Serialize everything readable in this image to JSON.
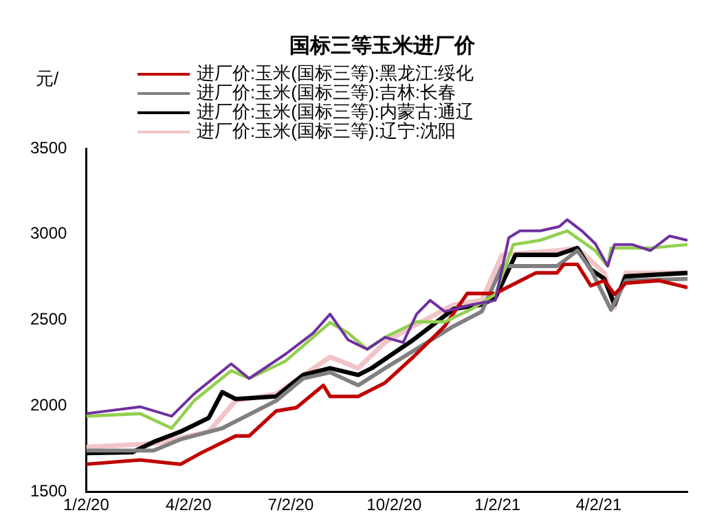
{
  "chart_data": {
    "type": "line",
    "title": "国标三等玉米进厂价",
    "ylabel": "元/",
    "legend": "top",
    "marker": "none",
    "line_style": "solid",
    "grid": false,
    "xlim": [
      "2020-01-02",
      "2021-06-20"
    ],
    "xticks": [
      {
        "value": "2020-01-02",
        "label": "1/2/20"
      },
      {
        "value": "2020-04-02",
        "label": "4/2/20"
      },
      {
        "value": "2020-07-02",
        "label": "7/2/20"
      },
      {
        "value": "2020-10-02",
        "label": "10/2/20"
      },
      {
        "value": "2021-01-02",
        "label": "1/2/21"
      },
      {
        "value": "2021-04-02",
        "label": "4/2/21"
      }
    ],
    "ylim": [
      1500,
      3500
    ],
    "yticks": [
      1500,
      2000,
      2500,
      3000,
      3500
    ],
    "series": [
      {
        "color": "#7030a0",
        "x": [
          "2020-01-02",
          "2020-02-19",
          "2020-03-18",
          "2020-04-07",
          "2020-05-10",
          "2020-05-26",
          "2020-06-27",
          "2020-07-22",
          "2020-08-06",
          "2020-08-22",
          "2020-09-08",
          "2020-09-24",
          "2020-10-10",
          "2020-10-22",
          "2020-11-03",
          "2020-11-16",
          "2020-12-10",
          "2020-12-31",
          "2021-01-12",
          "2021-01-22",
          "2021-02-09",
          "2021-02-26",
          "2021-03-05",
          "2021-03-18",
          "2021-03-30",
          "2021-04-10",
          "2021-04-16",
          "2021-05-02",
          "2021-05-18",
          "2021-06-04",
          "2021-06-20"
        ],
        "values": [
          1955,
          1995,
          1940,
          2070,
          2245,
          2160,
          2300,
          2425,
          2535,
          2385,
          2330,
          2400,
          2370,
          2535,
          2615,
          2550,
          2590,
          2615,
          2980,
          3020,
          3020,
          3045,
          3085,
          3020,
          2945,
          2815,
          2940,
          2940,
          2905,
          2990,
          2965
        ]
      },
      {
        "color": "#92d050",
        "x": [
          "2020-01-02",
          "2020-02-19",
          "2020-03-18",
          "2020-04-07",
          "2020-05-10",
          "2020-05-26",
          "2020-06-27",
          "2020-08-06",
          "2020-08-22",
          "2020-09-08",
          "2020-09-24",
          "2020-10-22",
          "2020-11-16",
          "2020-12-10",
          "2020-12-31",
          "2021-01-16",
          "2021-02-09",
          "2021-03-05",
          "2021-03-30",
          "2021-04-10",
          "2021-04-13",
          "2021-05-18",
          "2021-06-20"
        ],
        "values": [
          1940,
          1955,
          1870,
          2030,
          2205,
          2160,
          2260,
          2485,
          2425,
          2330,
          2400,
          2490,
          2490,
          2565,
          2650,
          2940,
          2965,
          3020,
          2905,
          2815,
          2920,
          2920,
          2940
        ]
      },
      {
        "name": "进厂价:玉米(国标三等):黑龙江:绥化",
        "color": "#c00000",
        "x": [
          "2020-01-02",
          "2020-02-19",
          "2020-03-26",
          "2020-04-13",
          "2020-05-14",
          "2020-05-26",
          "2020-06-19",
          "2020-07-07",
          "2020-07-31",
          "2020-08-06",
          "2020-08-31",
          "2020-09-24",
          "2020-10-19",
          "2020-11-16",
          "2020-12-06",
          "2020-12-31",
          "2021-02-05",
          "2021-02-24",
          "2021-03-02",
          "2021-03-14",
          "2021-03-26",
          "2021-04-07",
          "2021-04-16",
          "2021-04-26",
          "2021-05-26",
          "2021-06-20"
        ],
        "values": [
          1660,
          1685,
          1660,
          1725,
          1825,
          1825,
          1970,
          1990,
          2120,
          2055,
          2055,
          2135,
          2285,
          2465,
          2655,
          2655,
          2775,
          2775,
          2825,
          2825,
          2700,
          2730,
          2650,
          2715,
          2730,
          2690
        ]
      },
      {
        "name": "进厂价:玉米(国标三等):吉林:长春",
        "color": "#808080",
        "x": [
          "2020-01-02",
          "2020-03-02",
          "2020-03-26",
          "2020-05-02",
          "2020-06-19",
          "2020-07-13",
          "2020-08-06",
          "2020-08-31",
          "2020-09-24",
          "2020-10-19",
          "2020-11-24",
          "2020-12-19",
          "2021-01-06",
          "2021-02-24",
          "2021-03-14",
          "2021-03-26",
          "2021-04-13",
          "2021-04-26",
          "2021-06-20"
        ],
        "values": [
          1740,
          1740,
          1805,
          1870,
          2030,
          2160,
          2195,
          2120,
          2220,
          2320,
          2465,
          2550,
          2815,
          2815,
          2905,
          2795,
          2560,
          2730,
          2740
        ]
      },
      {
        "name": "进厂价:玉米(国标三等):内蒙古:通辽",
        "color": "#000000",
        "x": [
          "2020-01-02",
          "2020-02-12",
          "2020-03-02",
          "2020-03-26",
          "2020-04-20",
          "2020-05-02",
          "2020-05-14",
          "2020-06-19",
          "2020-07-13",
          "2020-08-06",
          "2020-08-31",
          "2020-09-12",
          "2020-10-19",
          "2020-11-24",
          "2020-12-19",
          "2020-12-31",
          "2021-01-18",
          "2021-02-24",
          "2021-03-14",
          "2021-03-26",
          "2021-04-07",
          "2021-04-16",
          "2021-04-26",
          "2021-06-20"
        ],
        "values": [
          1725,
          1730,
          1790,
          1850,
          1930,
          2080,
          2040,
          2055,
          2180,
          2220,
          2180,
          2220,
          2385,
          2565,
          2590,
          2630,
          2880,
          2880,
          2920,
          2795,
          2740,
          2590,
          2755,
          2775
        ]
      },
      {
        "name": "进厂价:玉米(国标三等):辽宁:沈阳",
        "color": "#f2c4c8",
        "x": [
          "2020-01-02",
          "2020-03-02",
          "2020-04-20",
          "2020-05-14",
          "2020-06-19",
          "2020-08-06",
          "2020-08-31",
          "2020-09-24",
          "2020-10-19",
          "2020-11-24",
          "2020-12-19",
          "2021-01-06",
          "2021-02-24",
          "2021-03-14",
          "2021-04-07",
          "2021-04-16",
          "2021-04-26",
          "2021-06-20"
        ],
        "values": [
          1760,
          1780,
          1850,
          2030,
          2070,
          2285,
          2220,
          2370,
          2465,
          2590,
          2615,
          2880,
          2905,
          2920,
          2775,
          2575,
          2775,
          2775
        ]
      }
    ]
  }
}
